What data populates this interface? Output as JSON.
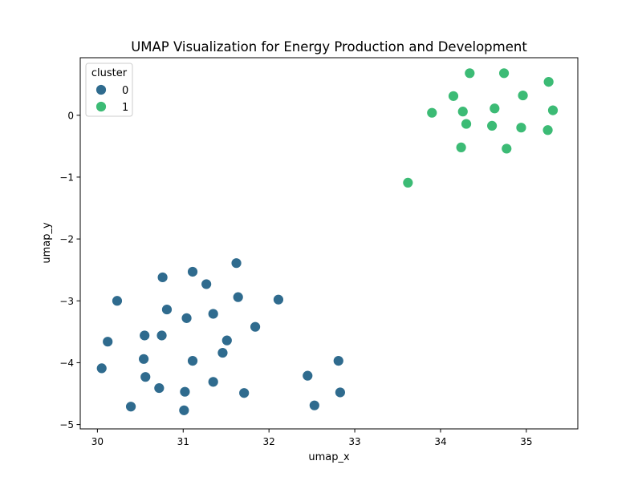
{
  "chart_data": {
    "type": "scatter",
    "title": "UMAP Visualization for Energy Production and Development",
    "xlabel": "umap_x",
    "ylabel": "umap_y",
    "xlim": [
      29.8,
      35.6
    ],
    "ylim": [
      -5.07,
      0.93
    ],
    "xticks": [
      30,
      31,
      32,
      33,
      34,
      35
    ],
    "yticks": [
      -5,
      -4,
      -3,
      -2,
      -1,
      0
    ],
    "xtick_labels": [
      "30",
      "31",
      "32",
      "33",
      "34",
      "35"
    ],
    "ytick_labels": [
      "−5",
      "−4",
      "−3",
      "−2",
      "−1",
      "0"
    ],
    "grid": false,
    "legend": {
      "title": "cluster",
      "placement": "top-left"
    },
    "series": [
      {
        "name": "0",
        "color": "#2f6b8e",
        "points": [
          [
            30.05,
            -4.09
          ],
          [
            30.12,
            -3.66
          ],
          [
            30.23,
            -3.0
          ],
          [
            30.39,
            -4.71
          ],
          [
            30.54,
            -3.94
          ],
          [
            30.55,
            -3.56
          ],
          [
            30.56,
            -4.23
          ],
          [
            30.72,
            -4.41
          ],
          [
            30.75,
            -3.56
          ],
          [
            30.76,
            -2.62
          ],
          [
            30.81,
            -3.14
          ],
          [
            31.01,
            -4.77
          ],
          [
            31.02,
            -4.47
          ],
          [
            31.04,
            -3.28
          ],
          [
            31.11,
            -3.97
          ],
          [
            31.11,
            -2.53
          ],
          [
            31.27,
            -2.73
          ],
          [
            31.35,
            -4.31
          ],
          [
            31.35,
            -3.21
          ],
          [
            31.46,
            -3.84
          ],
          [
            31.51,
            -3.64
          ],
          [
            31.62,
            -2.39
          ],
          [
            31.64,
            -2.94
          ],
          [
            31.71,
            -4.49
          ],
          [
            31.84,
            -3.42
          ],
          [
            32.11,
            -2.98
          ],
          [
            32.45,
            -4.21
          ],
          [
            32.53,
            -4.69
          ],
          [
            32.81,
            -3.97
          ],
          [
            32.83,
            -4.48
          ]
        ]
      },
      {
        "name": "1",
        "color": "#3cbb75",
        "points": [
          [
            33.62,
            -1.09
          ],
          [
            33.9,
            0.04
          ],
          [
            34.15,
            0.31
          ],
          [
            34.24,
            -0.52
          ],
          [
            34.26,
            0.06
          ],
          [
            34.3,
            -0.14
          ],
          [
            34.34,
            0.68
          ],
          [
            34.6,
            -0.17
          ],
          [
            34.63,
            0.11
          ],
          [
            34.74,
            0.68
          ],
          [
            34.77,
            -0.54
          ],
          [
            34.94,
            -0.2
          ],
          [
            34.96,
            0.32
          ],
          [
            35.25,
            -0.24
          ],
          [
            35.26,
            0.54
          ],
          [
            35.31,
            0.08
          ]
        ]
      }
    ]
  }
}
